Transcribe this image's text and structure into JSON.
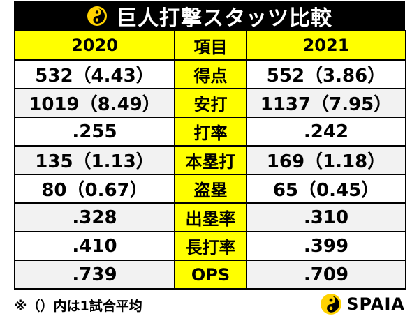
{
  "title": "巨人打撃スタッツ比較",
  "colors": {
    "accent": "#ffff00",
    "header_bg": "#000000",
    "row_shade": "#f2f2f2"
  },
  "table": {
    "headers": {
      "left": "2020",
      "middle": "項目",
      "right": "2021"
    },
    "rows": [
      {
        "label": "得点",
        "v2020": "532（4.43）",
        "v2021": "552（3.86）"
      },
      {
        "label": "安打",
        "v2020": "1019（8.49）",
        "v2021": "1137（7.95）"
      },
      {
        "label": "打率",
        "v2020": ".255",
        "v2021": ".242"
      },
      {
        "label": "本塁打",
        "v2020": "135（1.13）",
        "v2021": "169（1.18）"
      },
      {
        "label": "盗塁",
        "v2020": "80（0.67）",
        "v2021": "65（0.45）"
      },
      {
        "label": "出塁率",
        "v2020": ".328",
        "v2021": ".310"
      },
      {
        "label": "長打率",
        "v2020": ".410",
        "v2021": ".399"
      },
      {
        "label": "OPS",
        "v2020": ".739",
        "v2021": ".709"
      }
    ]
  },
  "footnote": "※（）内は1試合平均",
  "brand": {
    "name": "SPAIA",
    "logo_icon": "spaia-logo-icon"
  }
}
